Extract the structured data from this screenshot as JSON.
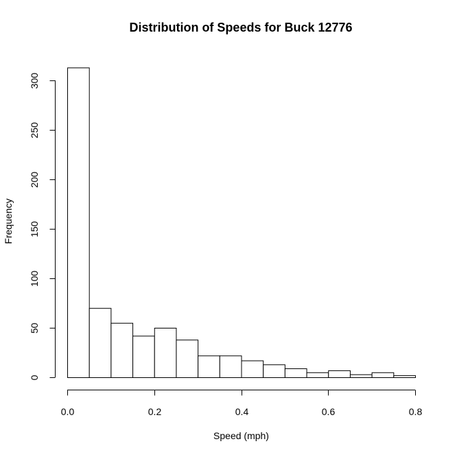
{
  "chart_data": {
    "type": "histogram",
    "title": "Distribution of Speeds for Buck 12776",
    "xlabel": "Speed (mph)",
    "ylabel": "Frequency",
    "xlim": [
      0.0,
      0.8
    ],
    "ylim": [
      0,
      310
    ],
    "x_ticks": [
      "0.0",
      "0.2",
      "0.4",
      "0.6",
      "0.8"
    ],
    "y_ticks": [
      "0",
      "50",
      "100",
      "150",
      "200",
      "250",
      "300"
    ],
    "bin_width": 0.05,
    "bins": [
      {
        "start": 0.0,
        "end": 0.05,
        "count": 313
      },
      {
        "start": 0.05,
        "end": 0.1,
        "count": 70
      },
      {
        "start": 0.1,
        "end": 0.15,
        "count": 55
      },
      {
        "start": 0.15,
        "end": 0.2,
        "count": 42
      },
      {
        "start": 0.2,
        "end": 0.25,
        "count": 50
      },
      {
        "start": 0.25,
        "end": 0.3,
        "count": 38
      },
      {
        "start": 0.3,
        "end": 0.35,
        "count": 22
      },
      {
        "start": 0.35,
        "end": 0.4,
        "count": 22
      },
      {
        "start": 0.4,
        "end": 0.45,
        "count": 17
      },
      {
        "start": 0.45,
        "end": 0.5,
        "count": 13
      },
      {
        "start": 0.5,
        "end": 0.55,
        "count": 9
      },
      {
        "start": 0.55,
        "end": 0.6,
        "count": 5
      },
      {
        "start": 0.6,
        "end": 0.65,
        "count": 7
      },
      {
        "start": 0.65,
        "end": 0.7,
        "count": 3
      },
      {
        "start": 0.7,
        "end": 0.75,
        "count": 5
      },
      {
        "start": 0.75,
        "end": 0.8,
        "count": 2
      }
    ],
    "grid": false,
    "bar_fill": "#ffffff",
    "bar_stroke": "#000000"
  }
}
